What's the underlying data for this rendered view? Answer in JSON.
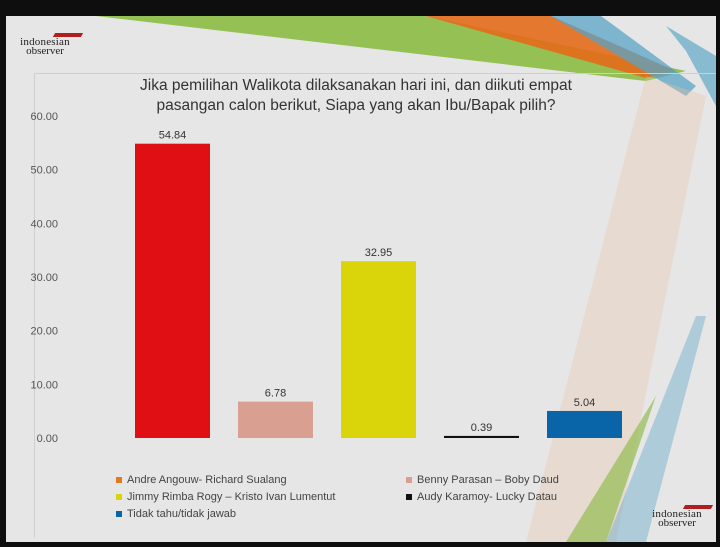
{
  "brand": {
    "line1": "indonesian",
    "line2": "observer",
    "mark_color": "#b21e1e"
  },
  "chart_data": {
    "type": "bar",
    "title_lines": [
      "Jika pemilihan Walikota dilaksanakan hari ini, dan diikuti empat",
      "pasangan calon berikut,  Siapa yang akan Ibu/Bapak pilih?"
    ],
    "categories": [
      "Andre Angouw- Richard Sualang",
      "Benny Parasan – Boby Daud",
      "Jimmy Rimba Rogy – Kristo Ivan Lumentut",
      "Audy Karamoy- Lucky Datau",
      "Tidak tahu/tidak jawab"
    ],
    "values": [
      54.84,
      6.78,
      32.95,
      0.39,
      5.04
    ],
    "value_labels": [
      "54.84",
      "6.78",
      "32.95",
      "0.39",
      "5.04"
    ],
    "bar_colors": [
      "#e00f14",
      "#d9a092",
      "#d9d50a",
      "#111111",
      "#0a64a8"
    ],
    "legend_colors": [
      "#e07a20",
      "#d9a092",
      "#d9d50a",
      "#111111",
      "#0a64a8"
    ],
    "ylim": [
      0,
      60
    ],
    "yticks": [
      "0.00",
      "10.00",
      "20.00",
      "30.00",
      "40.00",
      "50.00",
      "60.00"
    ],
    "ytick_values": [
      0,
      10,
      20,
      30,
      40,
      50,
      60
    ],
    "grid": false,
    "legend_placement": "bottom"
  }
}
